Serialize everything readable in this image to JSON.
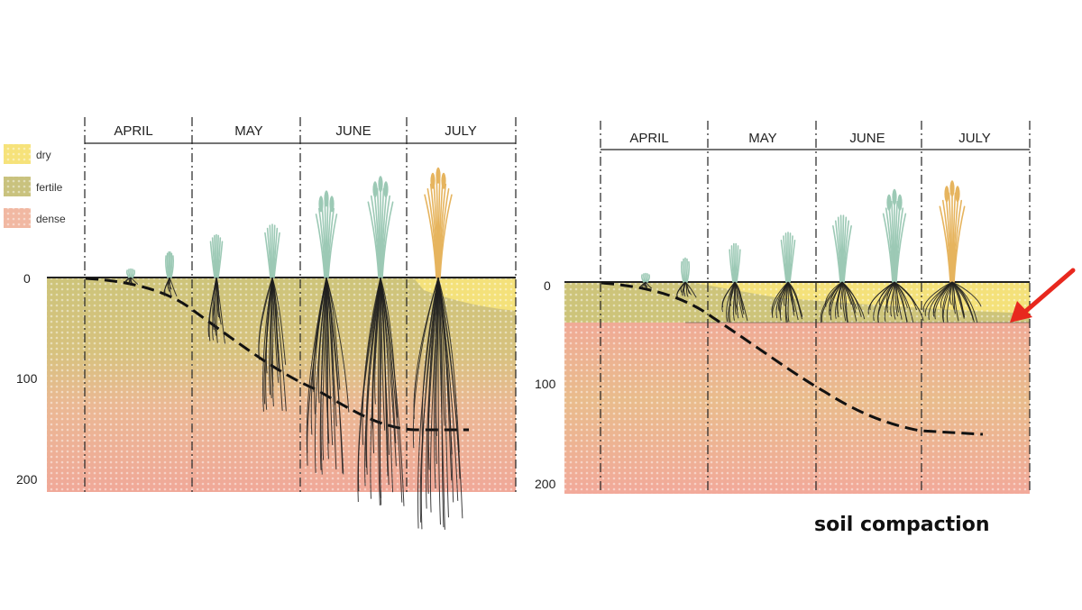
{
  "legend": [
    {
      "label": "dry",
      "color": "#f6e27a"
    },
    {
      "label": "fertile",
      "color": "#c9c27e"
    },
    {
      "label": "dense",
      "color": "#f1b8a2"
    }
  ],
  "panels": [
    {
      "id": "left",
      "months": [
        "APRIL",
        "MAY",
        "JUNE",
        "JULY"
      ],
      "depth_ticks": [
        "0",
        "100",
        "200"
      ],
      "compacted": false
    },
    {
      "id": "right",
      "months": [
        "APRIL",
        "MAY",
        "JUNE",
        "JULY"
      ],
      "depth_ticks": [
        "0",
        "100",
        "200"
      ],
      "compacted": true
    }
  ],
  "caption": "soil compaction",
  "colors": {
    "arrow": "#e8281e",
    "root": "#1e1e1e",
    "shoot_green": "#9cc9b5",
    "shoot_ripe": "#e6b45e"
  }
}
